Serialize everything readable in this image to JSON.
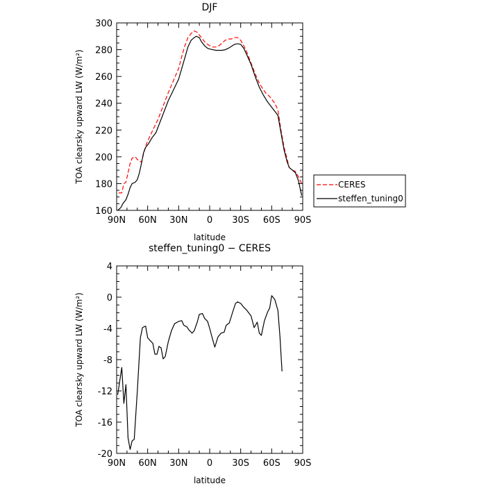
{
  "chart_data": [
    {
      "type": "line",
      "title": "DJF",
      "xlabel": "latitude",
      "ylabel": "TOA clearsky upward LW (W/m²)",
      "xlim": [
        90,
        -90
      ],
      "ylim": [
        160,
        300
      ],
      "x_ticks": [
        {
          "value": 90,
          "label": "90N"
        },
        {
          "value": 60,
          "label": "60N"
        },
        {
          "value": 30,
          "label": "30N"
        },
        {
          "value": 0,
          "label": "0"
        },
        {
          "value": -30,
          "label": "30S"
        },
        {
          "value": -60,
          "label": "60S"
        },
        {
          "value": -90,
          "label": "90S"
        }
      ],
      "y_ticks": [
        160,
        180,
        200,
        220,
        240,
        260,
        280,
        300
      ],
      "legend": {
        "placement": "right",
        "entries": [
          "CERES",
          "steffen_tuning0"
        ]
      },
      "series": [
        {
          "name": "CERES",
          "color": "#ff0000",
          "dash": "dashed",
          "points": [
            [
              88,
              173
            ],
            [
              85,
              173
            ],
            [
              83,
              180
            ],
            [
              81,
              181
            ],
            [
              79,
              188
            ],
            [
              77,
              195
            ],
            [
              75,
              199
            ],
            [
              72,
              200
            ],
            [
              70,
              198
            ],
            [
              68,
              197
            ],
            [
              66,
              196
            ],
            [
              63,
              205
            ],
            [
              61,
              210
            ],
            [
              58,
              215
            ],
            [
              55,
              220
            ],
            [
              50,
              228
            ],
            [
              45,
              238
            ],
            [
              40,
              248
            ],
            [
              35,
              257
            ],
            [
              30,
              266
            ],
            [
              27,
              275
            ],
            [
              24,
              283
            ],
            [
              21,
              289
            ],
            [
              18,
              292
            ],
            [
              15,
              294
            ],
            [
              12,
              293
            ],
            [
              10,
              291
            ],
            [
              7,
              288
            ],
            [
              5,
              286
            ],
            [
              2,
              284
            ],
            [
              0,
              283
            ],
            [
              -3,
              282
            ],
            [
              -6,
              282
            ],
            [
              -9,
              283
            ],
            [
              -12,
              285
            ],
            [
              -15,
              287
            ],
            [
              -18,
              288
            ],
            [
              -21,
              288
            ],
            [
              -24,
              289
            ],
            [
              -27,
              289
            ],
            [
              -30,
              287
            ],
            [
              -33,
              283
            ],
            [
              -36,
              278
            ],
            [
              -40,
              270
            ],
            [
              -44,
              262
            ],
            [
              -48,
              255
            ],
            [
              -52,
              250
            ],
            [
              -55,
              247
            ],
            [
              -58,
              245
            ],
            [
              -60,
              243
            ],
            [
              -63,
              240
            ],
            [
              -66,
              235
            ],
            [
              -69,
              220
            ],
            [
              -72,
              207
            ],
            [
              -75,
              198
            ],
            [
              -77,
              192
            ],
            [
              -80,
              190
            ],
            [
              -83,
              189
            ],
            [
              -86,
              185
            ],
            [
              -89,
              180
            ]
          ]
        },
        {
          "name": "steffen_tuning0",
          "color": "#000000",
          "dash": "solid",
          "points": [
            [
              89,
              160
            ],
            [
              86,
              162
            ],
            [
              84,
              165
            ],
            [
              81,
              168
            ],
            [
              79,
              172
            ],
            [
              77,
              177
            ],
            [
              75,
              180
            ],
            [
              72,
              181
            ],
            [
              70,
              183
            ],
            [
              68,
              188
            ],
            [
              66,
              195
            ],
            [
              64,
              203
            ],
            [
              62,
              207
            ],
            [
              59,
              210
            ],
            [
              56,
              214
            ],
            [
              52,
              218
            ],
            [
              49,
              224
            ],
            [
              45,
              232
            ],
            [
              40,
              242
            ],
            [
              35,
              250
            ],
            [
              30,
              258
            ],
            [
              27,
              266
            ],
            [
              24,
              274
            ],
            [
              21,
              282
            ],
            [
              18,
              287
            ],
            [
              15,
              289
            ],
            [
              13,
              290
            ],
            [
              10,
              289
            ],
            [
              8,
              286
            ],
            [
              5,
              283
            ],
            [
              2,
              281
            ],
            [
              0,
              280.5
            ],
            [
              -3,
              280
            ],
            [
              -6,
              279.5
            ],
            [
              -9,
              279.5
            ],
            [
              -12,
              279.5
            ],
            [
              -15,
              280
            ],
            [
              -18,
              281
            ],
            [
              -21,
              282.5
            ],
            [
              -24,
              284
            ],
            [
              -27,
              284.5
            ],
            [
              -30,
              284
            ],
            [
              -33,
              281
            ],
            [
              -36,
              276
            ],
            [
              -40,
              269
            ],
            [
              -44,
              260
            ],
            [
              -48,
              252
            ],
            [
              -52,
              246
            ],
            [
              -56,
              241
            ],
            [
              -60,
              237
            ],
            [
              -63,
              234
            ],
            [
              -66,
              231
            ],
            [
              -69,
              218
            ],
            [
              -72,
              205
            ],
            [
              -75,
              196
            ],
            [
              -77,
              192
            ],
            [
              -80,
              190
            ],
            [
              -83,
              188
            ],
            [
              -86,
              182
            ],
            [
              -89,
              171
            ]
          ]
        }
      ]
    },
    {
      "type": "line",
      "title": "steffen_tuning0 − CERES",
      "xlabel": "latitude",
      "ylabel": "TOA clearsky upward LW (W/m²)",
      "xlim": [
        90,
        -90
      ],
      "ylim": [
        -20,
        4
      ],
      "x_ticks": [
        {
          "value": 90,
          "label": "90N"
        },
        {
          "value": 60,
          "label": "60N"
        },
        {
          "value": 30,
          "label": "30N"
        },
        {
          "value": 0,
          "label": "0"
        },
        {
          "value": -30,
          "label": "30S"
        },
        {
          "value": -60,
          "label": "60S"
        },
        {
          "value": -90,
          "label": "90S"
        }
      ],
      "y_ticks": [
        4,
        0,
        -4,
        -8,
        -12,
        -16,
        -20
      ],
      "series": [
        {
          "color": "#000000",
          "dash": "solid",
          "points": [
            [
              89,
              -12.5
            ],
            [
              85,
              -9.0
            ],
            [
              83,
              -13.6
            ],
            [
              81,
              -11.2
            ],
            [
              79,
              -18.0
            ],
            [
              77,
              -19.5
            ],
            [
              75,
              -18.4
            ],
            [
              73,
              -18.2
            ],
            [
              70,
              -12.0
            ],
            [
              67,
              -5.2
            ],
            [
              65,
              -3.9
            ],
            [
              62,
              -3.7
            ],
            [
              60,
              -5.2
            ],
            [
              58,
              -5.5
            ],
            [
              55,
              -5.9
            ],
            [
              53,
              -7.3
            ],
            [
              51,
              -7.3
            ],
            [
              49,
              -6.3
            ],
            [
              47,
              -6.5
            ],
            [
              45,
              -7.9
            ],
            [
              43,
              -7.6
            ],
            [
              40,
              -5.7
            ],
            [
              37,
              -4.3
            ],
            [
              34,
              -3.4
            ],
            [
              30,
              -3.1
            ],
            [
              27,
              -3.0
            ],
            [
              25,
              -3.6
            ],
            [
              22,
              -3.8
            ],
            [
              20,
              -4.2
            ],
            [
              17,
              -4.6
            ],
            [
              15,
              -4.3
            ],
            [
              12,
              -3.2
            ],
            [
              10,
              -2.2
            ],
            [
              7,
              -2.1
            ],
            [
              5,
              -2.7
            ],
            [
              2,
              -3.1
            ],
            [
              0,
              -4.0
            ],
            [
              -3,
              -5.5
            ],
            [
              -5,
              -6.4
            ],
            [
              -8,
              -5.1
            ],
            [
              -11,
              -4.6
            ],
            [
              -14,
              -4.5
            ],
            [
              -16,
              -3.6
            ],
            [
              -19,
              -3.3
            ],
            [
              -22,
              -2.0
            ],
            [
              -25,
              -0.8
            ],
            [
              -27,
              -0.6
            ],
            [
              -30,
              -0.8
            ],
            [
              -33,
              -1.3
            ],
            [
              -36,
              -1.7
            ],
            [
              -40,
              -2.4
            ],
            [
              -43,
              -3.9
            ],
            [
              -46,
              -3.2
            ],
            [
              -48,
              -4.6
            ],
            [
              -50,
              -4.9
            ],
            [
              -53,
              -3.0
            ],
            [
              -56,
              -1.9
            ],
            [
              -58,
              -1.4
            ],
            [
              -60,
              0.2
            ],
            [
              -63,
              -0.3
            ],
            [
              -66,
              -1.7
            ],
            [
              -68,
              -5.0
            ],
            [
              -70,
              -9.5
            ]
          ]
        }
      ]
    }
  ]
}
